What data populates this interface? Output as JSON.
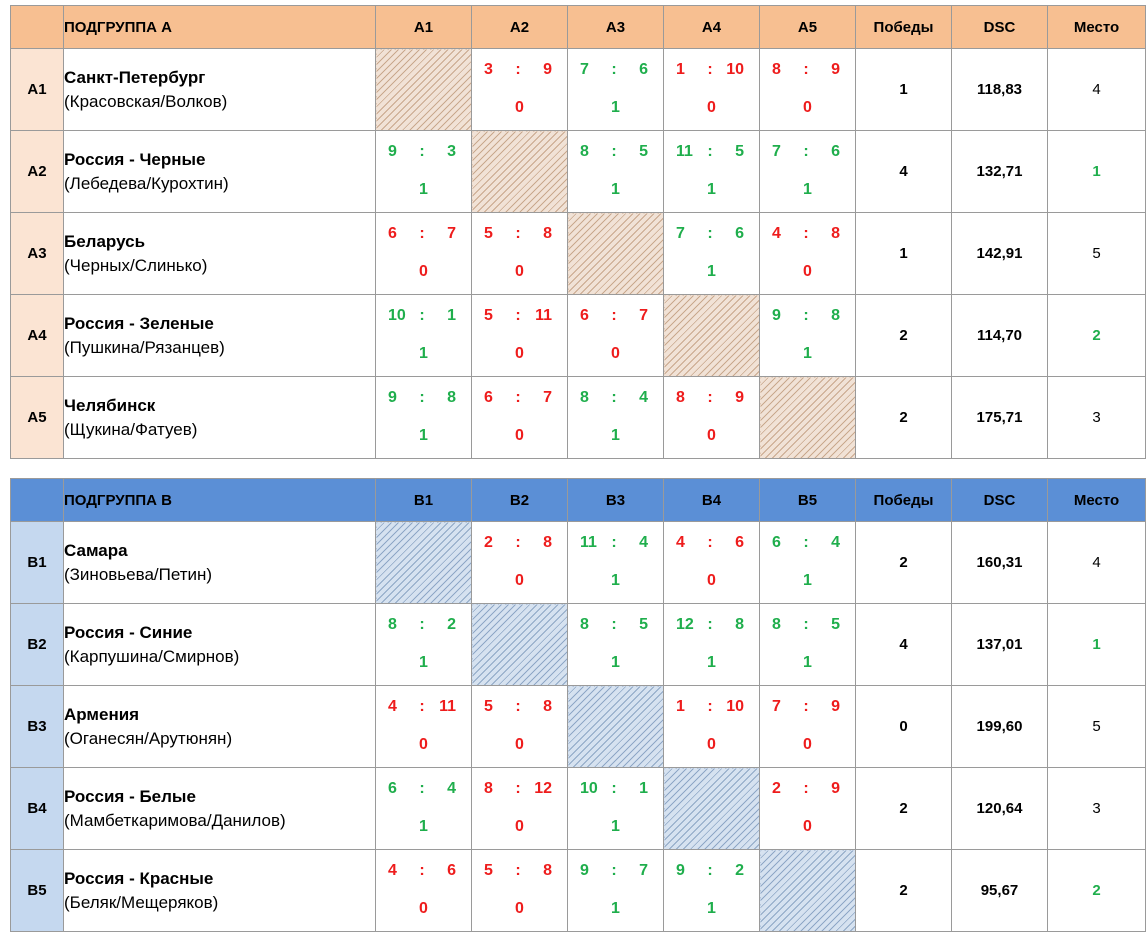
{
  "groups": [
    {
      "title": "ПОДГРУППА А",
      "columns": [
        "A1",
        "A2",
        "A3",
        "A4",
        "A5"
      ],
      "wins_label": "Победы",
      "dsc_label": "DSC",
      "place_label": "Место",
      "rows": [
        {
          "code": "A1",
          "team": "Санкт-Петербург",
          "players": "(Красовская/Волков)",
          "results": [
            null,
            {
              "s": "3",
              "c": "9",
              "p": "0"
            },
            {
              "s": "7",
              "c": "6",
              "p": "1"
            },
            {
              "s": "1",
              "c": "10",
              "p": "0"
            },
            {
              "s": "8",
              "c": "9",
              "p": "0"
            }
          ],
          "wins": "1",
          "dsc": "118,83",
          "place": "4"
        },
        {
          "code": "A2",
          "team": "Россия - Черные",
          "players": "(Лебедева/Курохтин)",
          "results": [
            {
              "s": "9",
              "c": "3",
              "p": "1"
            },
            null,
            {
              "s": "8",
              "c": "5",
              "p": "1"
            },
            {
              "s": "11",
              "c": "5",
              "p": "1"
            },
            {
              "s": "7",
              "c": "6",
              "p": "1"
            }
          ],
          "wins": "4",
          "dsc": "132,71",
          "place": "1"
        },
        {
          "code": "A3",
          "team": "Беларусь",
          "players": "(Черных/Слинько)",
          "results": [
            {
              "s": "6",
              "c": "7",
              "p": "0"
            },
            {
              "s": "5",
              "c": "8",
              "p": "0"
            },
            null,
            {
              "s": "7",
              "c": "6",
              "p": "1"
            },
            {
              "s": "4",
              "c": "8",
              "p": "0"
            }
          ],
          "wins": "1",
          "dsc": "142,91",
          "place": "5"
        },
        {
          "code": "A4",
          "team": "Россия - Зеленые",
          "players": "(Пушкина/Рязанцев)",
          "results": [
            {
              "s": "10",
              "c": "1",
              "p": "1"
            },
            {
              "s": "5",
              "c": "11",
              "p": "0"
            },
            {
              "s": "6",
              "c": "7",
              "p": "0"
            },
            null,
            {
              "s": "9",
              "c": "8",
              "p": "1"
            }
          ],
          "wins": "2",
          "dsc": "114,70",
          "place": "2"
        },
        {
          "code": "A5",
          "team": "Челябинск",
          "players": "(Щукина/Фатуев)",
          "results": [
            {
              "s": "9",
              "c": "8",
              "p": "1"
            },
            {
              "s": "6",
              "c": "7",
              "p": "0"
            },
            {
              "s": "8",
              "c": "4",
              "p": "1"
            },
            {
              "s": "8",
              "c": "9",
              "p": "0"
            },
            null
          ],
          "wins": "2",
          "dsc": "175,71",
          "place": "3"
        }
      ]
    },
    {
      "title": "ПОДГРУППА В",
      "columns": [
        "B1",
        "B2",
        "B3",
        "B4",
        "B5"
      ],
      "wins_label": "Победы",
      "dsc_label": "DSC",
      "place_label": "Место",
      "rows": [
        {
          "code": "B1",
          "team": "Самара",
          "players": "(Зиновьева/Петин)",
          "results": [
            null,
            {
              "s": "2",
              "c": "8",
              "p": "0"
            },
            {
              "s": "11",
              "c": "4",
              "p": "1"
            },
            {
              "s": "4",
              "c": "6",
              "p": "0"
            },
            {
              "s": "6",
              "c": "4",
              "p": "1"
            }
          ],
          "wins": "2",
          "dsc": "160,31",
          "place": "4"
        },
        {
          "code": "B2",
          "team": "Россия - Синие",
          "players": "(Карпушина/Смирнов)",
          "results": [
            {
              "s": "8",
              "c": "2",
              "p": "1"
            },
            null,
            {
              "s": "8",
              "c": "5",
              "p": "1"
            },
            {
              "s": "12",
              "c": "8",
              "p": "1"
            },
            {
              "s": "8",
              "c": "5",
              "p": "1"
            }
          ],
          "wins": "4",
          "dsc": "137,01",
          "place": "1"
        },
        {
          "code": "B3",
          "team": "Армения",
          "players": "(Оганесян/Арутюнян)",
          "results": [
            {
              "s": "4",
              "c": "11",
              "p": "0"
            },
            {
              "s": "5",
              "c": "8",
              "p": "0"
            },
            null,
            {
              "s": "1",
              "c": "10",
              "p": "0"
            },
            {
              "s": "7",
              "c": "9",
              "p": "0"
            }
          ],
          "wins": "0",
          "dsc": "199,60",
          "place": "5"
        },
        {
          "code": "B4",
          "team": "Россия - Белые",
          "players": "(Мамбеткаримова/Данилов)",
          "results": [
            {
              "s": "6",
              "c": "4",
              "p": "1"
            },
            {
              "s": "8",
              "c": "12",
              "p": "0"
            },
            {
              "s": "10",
              "c": "1",
              "p": "1"
            },
            null,
            {
              "s": "2",
              "c": "9",
              "p": "0"
            }
          ],
          "wins": "2",
          "dsc": "120,64",
          "place": "3"
        },
        {
          "code": "B5",
          "team": "Россия - Красные",
          "players": "(Беляк/Мещеряков)",
          "results": [
            {
              "s": "4",
              "c": "6",
              "p": "0"
            },
            {
              "s": "5",
              "c": "8",
              "p": "0"
            },
            {
              "s": "9",
              "c": "7",
              "p": "1"
            },
            {
              "s": "9",
              "c": "2",
              "p": "1"
            },
            null
          ],
          "wins": "2",
          "dsc": "95,67",
          "place": "2"
        }
      ]
    }
  ],
  "colors": {
    "win": "#1fae4c",
    "loss": "#ee1c1c",
    "group_a_header": "#f7bf91",
    "group_a_code": "#fbe4d3",
    "group_b_header": "#5b8fd6",
    "group_b_code": "#c5d8ef"
  }
}
